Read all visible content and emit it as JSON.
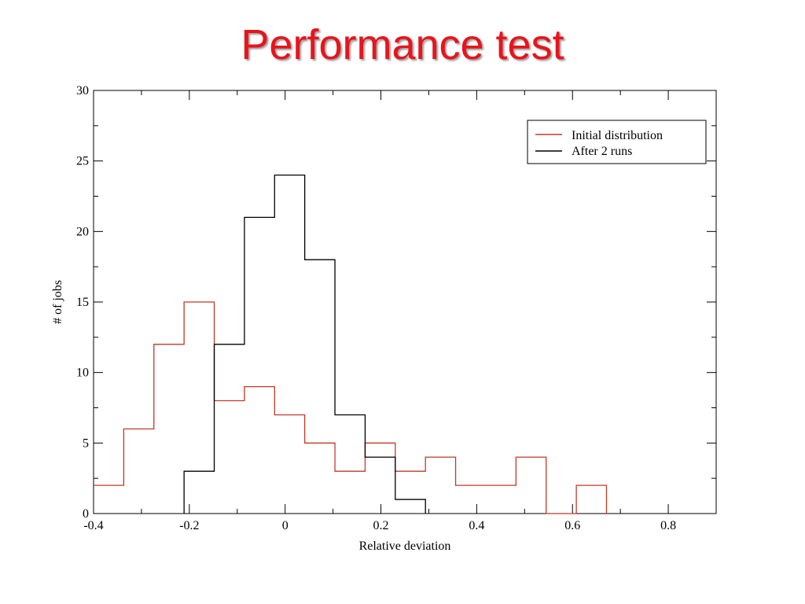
{
  "slide": {
    "title": "Performance test"
  },
  "chart_data": {
    "type": "line",
    "step": true,
    "xlabel": "Relative deviation",
    "ylabel": "# of jobs",
    "xlim": [
      -0.4,
      0.9
    ],
    "ylim": [
      0,
      30
    ],
    "x_ticks": [
      -0.4,
      -0.2,
      0,
      0.2,
      0.4,
      0.6,
      0.8
    ],
    "x_tick_labels": [
      "-0.4",
      "-0.2",
      "0",
      "0.2",
      "0.4",
      "0.6",
      "0.8"
    ],
    "y_ticks": [
      0,
      5,
      10,
      15,
      20,
      25,
      30
    ],
    "y_tick_labels": [
      "0",
      "5",
      "10",
      "15",
      "20",
      "25",
      "30"
    ],
    "grid": false,
    "legend": "top-right",
    "series": [
      {
        "name": "Initial distribution",
        "color": "#c0392b",
        "edges": [
          -0.4,
          -0.337,
          -0.274,
          -0.211,
          -0.148,
          -0.085,
          -0.022,
          0.041,
          0.104,
          0.167,
          0.23,
          0.293,
          0.356,
          0.419,
          0.482,
          0.545,
          0.608,
          0.671
        ],
        "values": [
          2,
          6,
          12,
          15,
          8,
          9,
          7,
          5,
          3,
          5,
          3,
          4,
          2,
          2,
          4,
          0,
          2
        ]
      },
      {
        "name": "After 2 runs",
        "color": "#000000",
        "edges": [
          -0.211,
          -0.148,
          -0.085,
          -0.022,
          0.041,
          0.104,
          0.167,
          0.23,
          0.293
        ],
        "values": [
          3,
          12,
          21,
          24,
          18,
          7,
          4,
          1
        ]
      }
    ]
  }
}
